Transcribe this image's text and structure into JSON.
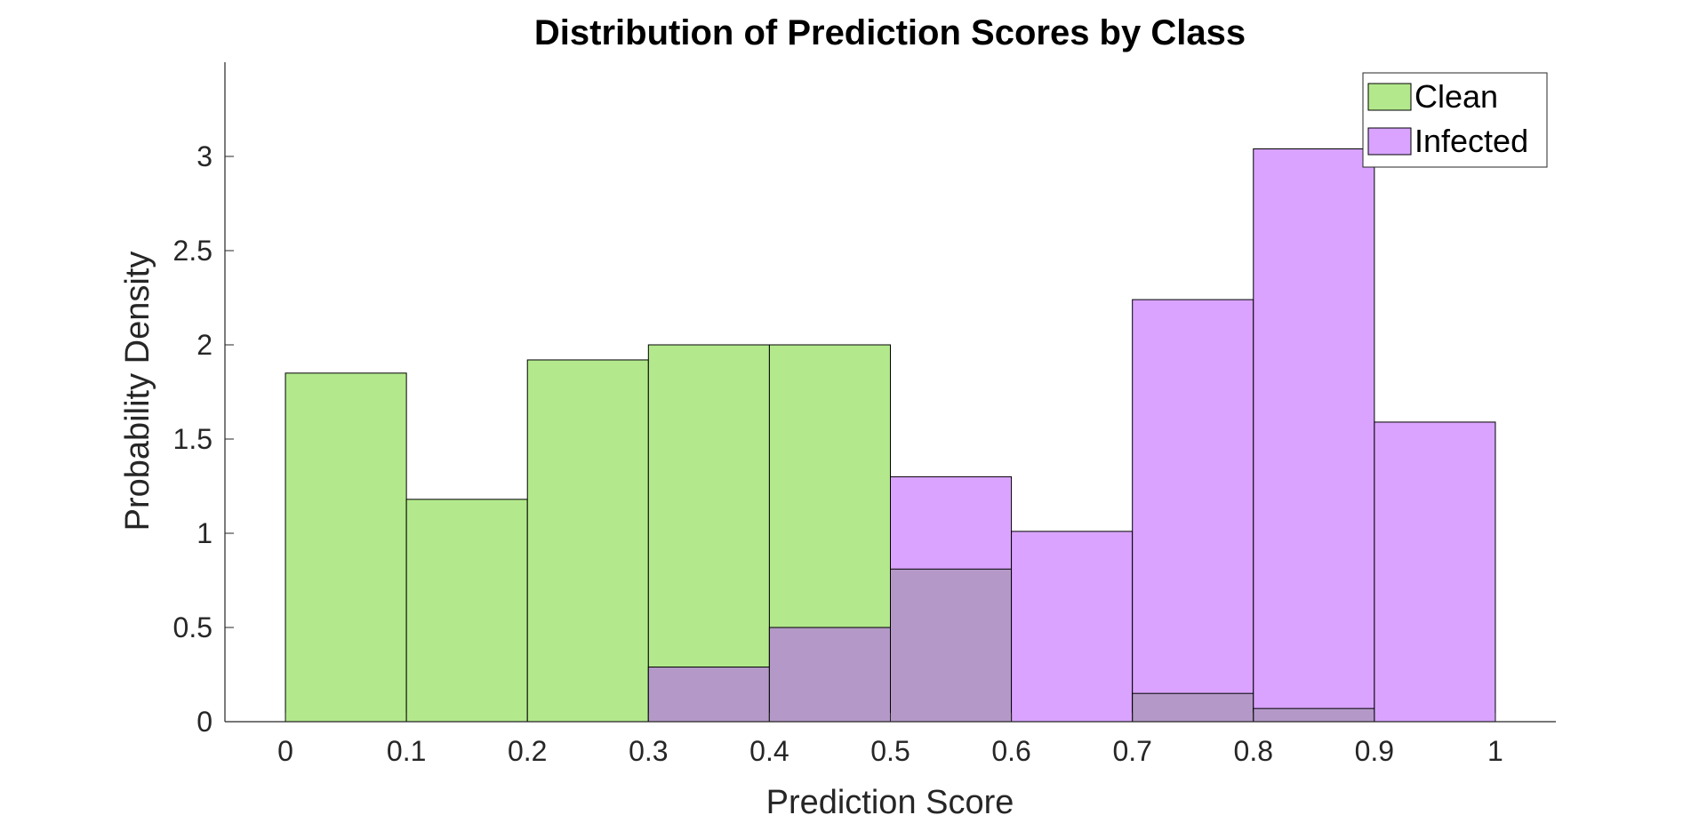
{
  "chart_data": {
    "type": "bar",
    "title": "Distribution of Prediction Scores by Class",
    "xlabel": "Prediction Score",
    "ylabel": "Probability Density",
    "xlim": [
      -0.05,
      1.05
    ],
    "ylim": [
      0,
      3.5
    ],
    "bin_edges": [
      0,
      0.1,
      0.2,
      0.3,
      0.4,
      0.5,
      0.6,
      0.7,
      0.8,
      0.9,
      1.0
    ],
    "x_ticks": [
      "0",
      "0.1",
      "0.2",
      "0.3",
      "0.4",
      "0.5",
      "0.6",
      "0.7",
      "0.8",
      "0.9",
      "1"
    ],
    "x_tick_values": [
      0,
      0.1,
      0.2,
      0.3,
      0.4,
      0.5,
      0.6,
      0.7,
      0.8,
      0.9,
      1.0
    ],
    "y_ticks": [
      "0",
      "0.5",
      "1",
      "1.5",
      "2",
      "2.5",
      "3"
    ],
    "y_tick_values": [
      0,
      0.5,
      1,
      1.5,
      2,
      2.5,
      3
    ],
    "grid": false,
    "legend_position": "top-right",
    "series": [
      {
        "name": "Clean",
        "color": "#b3e98c",
        "values": [
          1.85,
          1.18,
          1.92,
          2.0,
          2.0,
          0.81,
          0.0,
          0.15,
          0.07,
          0.0
        ]
      },
      {
        "name": "Infected",
        "color": "#d9a3ff",
        "values": [
          0.0,
          0.0,
          0.0,
          0.29,
          0.5,
          1.3,
          1.01,
          2.24,
          3.04,
          1.59
        ]
      }
    ],
    "overlap_color": "#b499c8"
  }
}
